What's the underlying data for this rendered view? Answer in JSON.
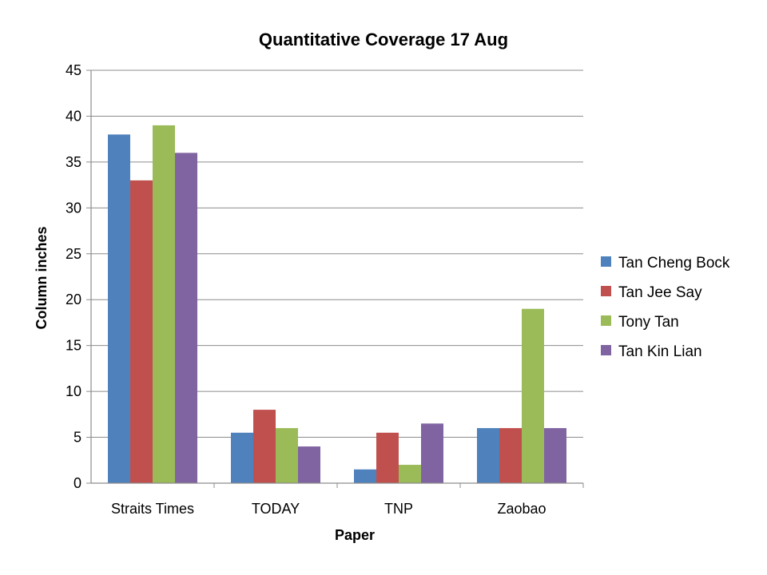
{
  "chart_data": {
    "type": "bar",
    "title": "Quantitative Coverage 17 Aug",
    "xlabel": "Paper",
    "ylabel": "Column inches",
    "categories": [
      "Straits Times",
      "TODAY",
      "TNP",
      "Zaobao"
    ],
    "ylim": [
      0,
      45
    ],
    "yticks": [
      0,
      5,
      10,
      15,
      20,
      25,
      30,
      35,
      40,
      45
    ],
    "grid": true,
    "legend_position": "right",
    "series": [
      {
        "name": "Tan Cheng Bock",
        "color": "#4F81BD",
        "values": [
          38,
          5.5,
          1.5,
          6
        ]
      },
      {
        "name": "Tan Jee Say",
        "color": "#C0504D",
        "values": [
          33,
          8,
          5.5,
          6
        ]
      },
      {
        "name": "Tony Tan",
        "color": "#9BBB59",
        "values": [
          39,
          6,
          2,
          19
        ]
      },
      {
        "name": "Tan Kin Lian",
        "color": "#8064A2",
        "values": [
          36,
          4,
          6.5,
          6
        ]
      }
    ]
  }
}
